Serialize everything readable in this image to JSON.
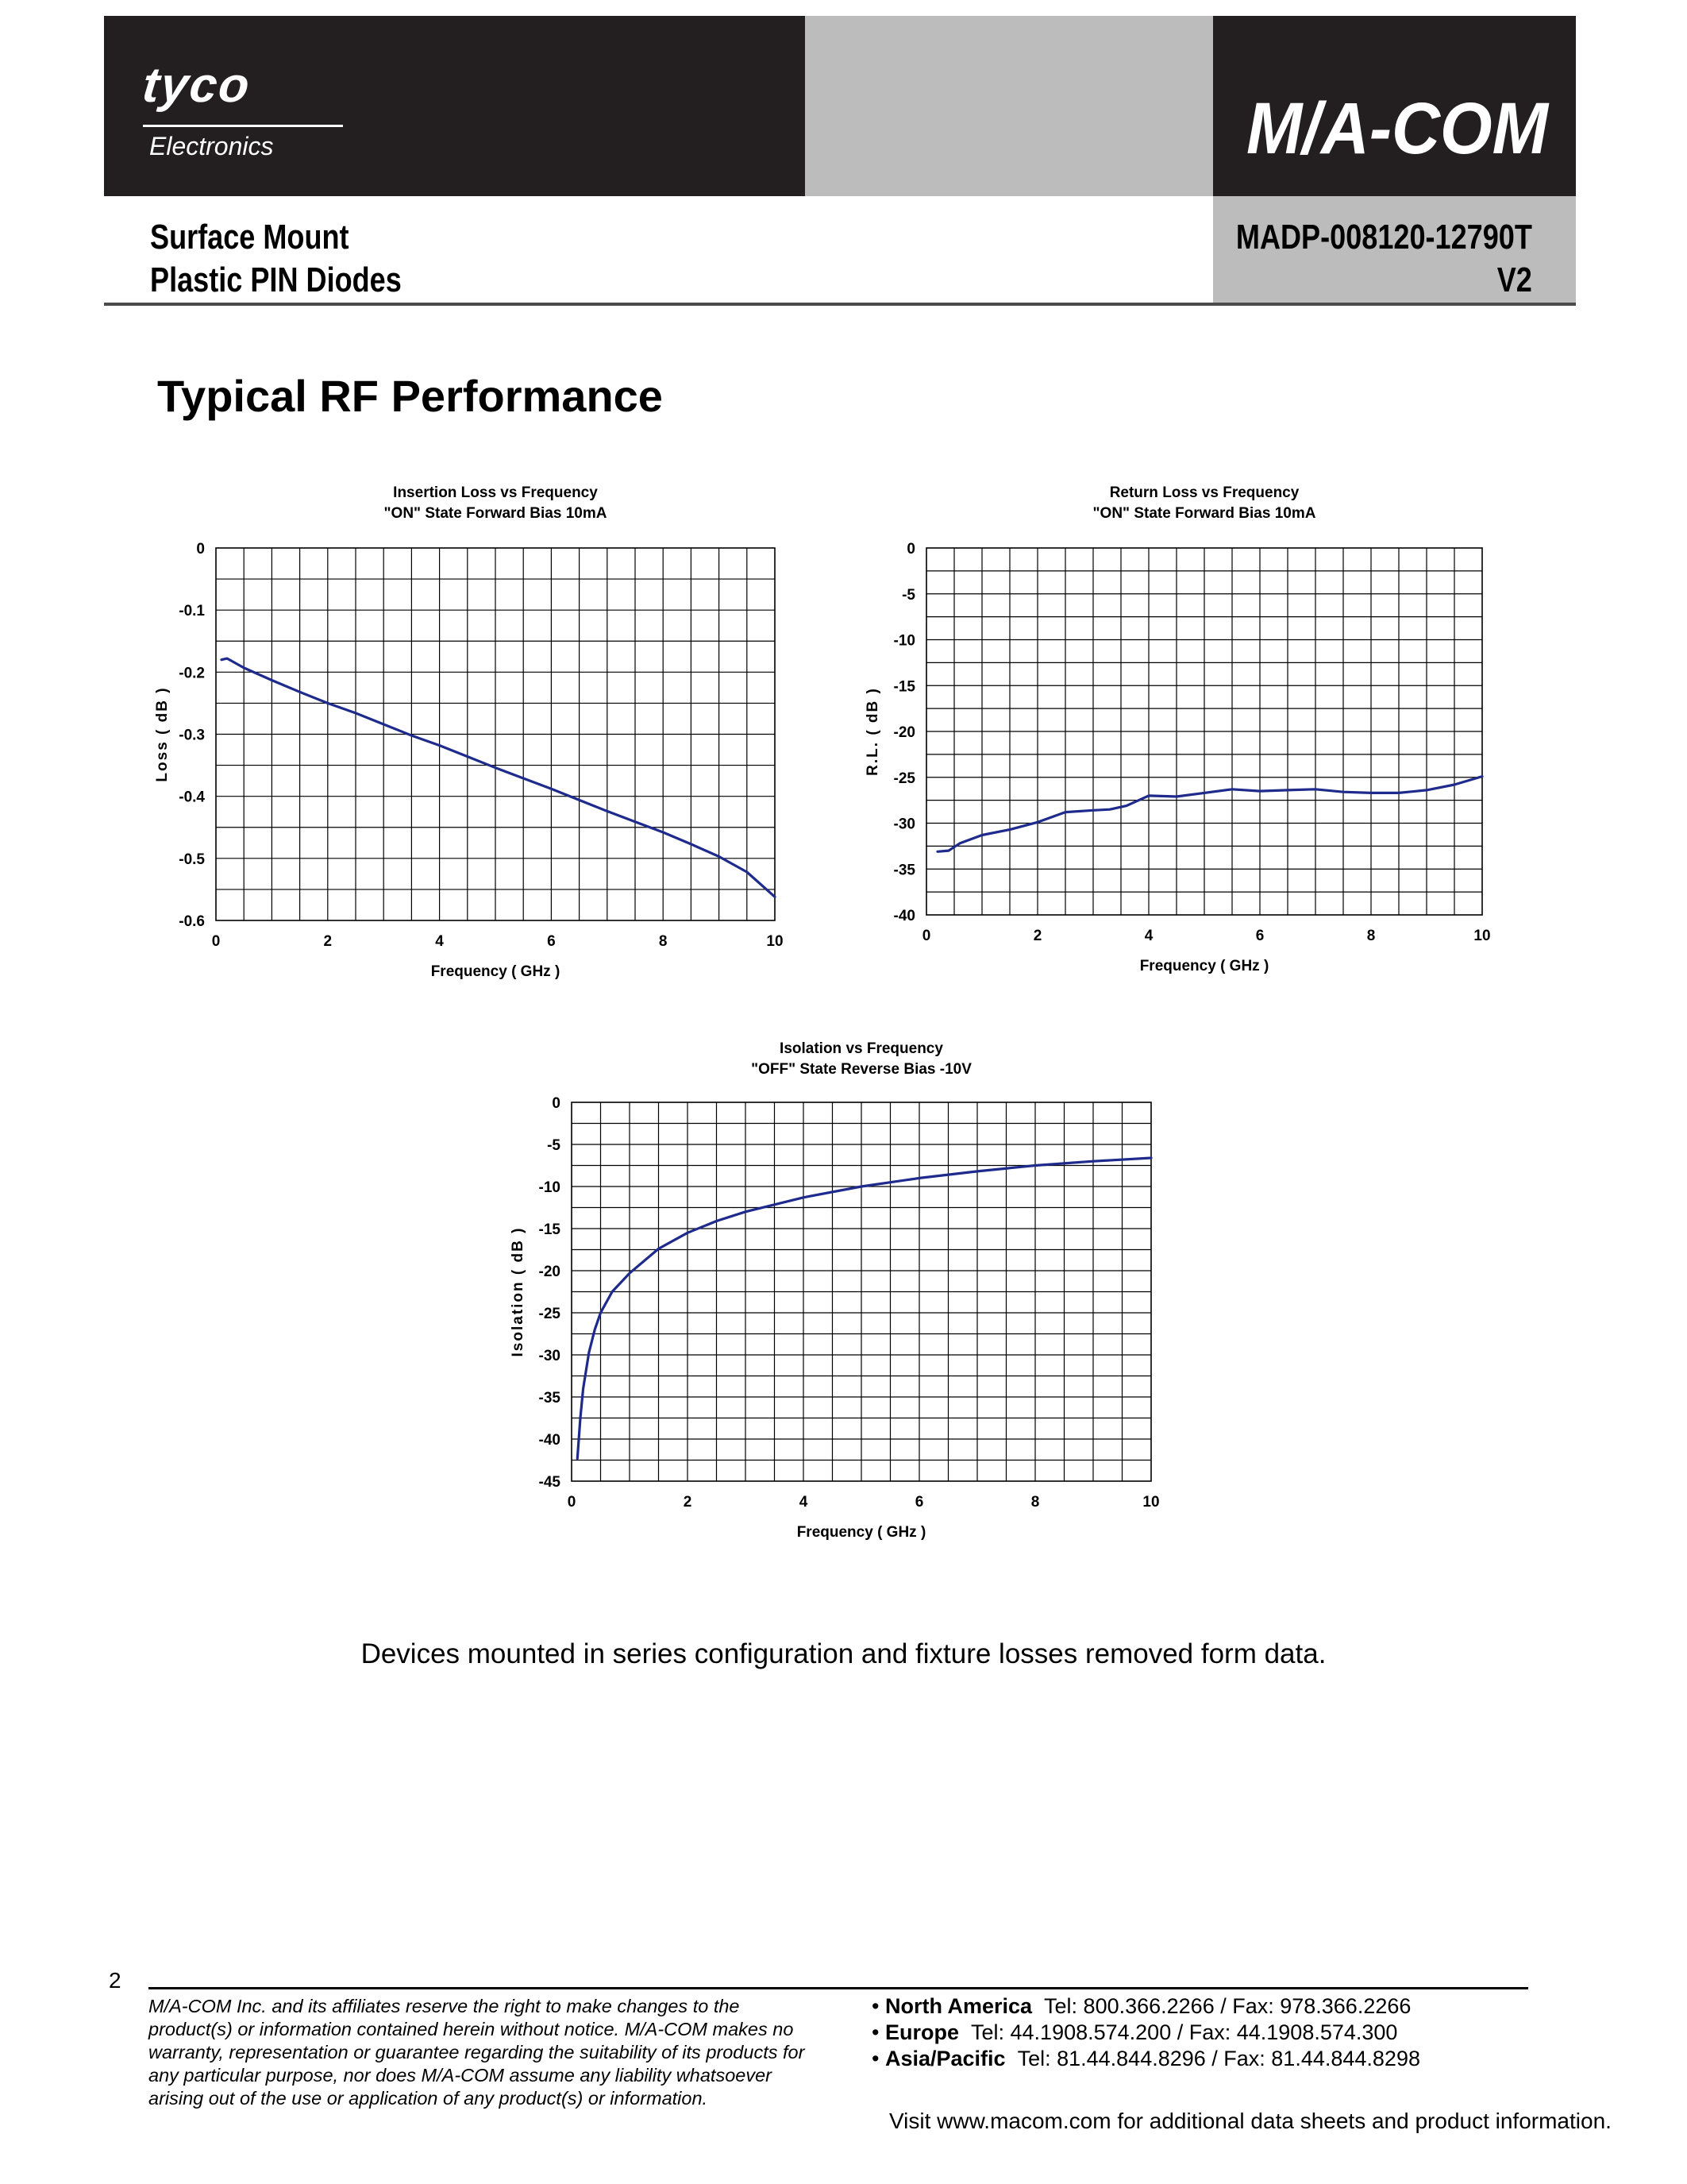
{
  "header": {
    "left_logo_text": "tyco",
    "left_logo_subtext": "Electronics",
    "right_logo_text": "M/A-COM",
    "product_line1": "Surface Mount",
    "product_line2": "Plastic PIN Diodes",
    "part_number": "MADP-008120-12790T",
    "version": "V2"
  },
  "section_title": "Typical RF Performance",
  "chart_data": [
    {
      "type": "line",
      "title": "Insertion Loss vs Frequency",
      "subtitle": "\"ON\" State Forward Bias 10mA",
      "xlabel": "Frequency ( GHz )",
      "ylabel": "Loss ( dB )",
      "xlim": [
        0,
        10
      ],
      "ylim": [
        -0.6,
        0
      ],
      "xticks": [
        0,
        2,
        4,
        6,
        8,
        10
      ],
      "yticks": [
        0,
        -0.1,
        -0.2,
        -0.3,
        -0.4,
        -0.5,
        -0.6
      ],
      "ytick_labels": [
        "0",
        "-0.1",
        "-0.2",
        "-0.3",
        "-0.4",
        "-0.5",
        "-0.6"
      ],
      "grid": true,
      "series": [
        {
          "color": "#1e2a8c",
          "x": [
            0.1,
            0.2,
            0.3,
            0.5,
            1,
            1.5,
            2,
            2.5,
            3,
            3.5,
            4,
            4.5,
            5,
            5.5,
            6,
            6.5,
            7,
            7.5,
            8,
            8.5,
            9,
            9.5,
            10
          ],
          "y": [
            -0.18,
            -0.178,
            -0.183,
            -0.193,
            -0.213,
            -0.232,
            -0.25,
            -0.266,
            -0.284,
            -0.302,
            -0.318,
            -0.336,
            -0.354,
            -0.371,
            -0.388,
            -0.406,
            -0.424,
            -0.441,
            -0.458,
            -0.477,
            -0.497,
            -0.522,
            -0.562
          ]
        }
      ]
    },
    {
      "type": "line",
      "title": "Return Loss vs Frequency",
      "subtitle": "\"ON\" State Forward Bias 10mA",
      "xlabel": "Frequency ( GHz )",
      "ylabel": "R.L. ( dB )",
      "xlim": [
        0,
        10
      ],
      "ylim": [
        -40,
        0
      ],
      "xticks": [
        0,
        2,
        4,
        6,
        8,
        10
      ],
      "yticks": [
        0,
        -5,
        -10,
        -15,
        -20,
        -25,
        -30,
        -35,
        -40
      ],
      "ytick_labels": [
        "0",
        "-5",
        "-10",
        "-15",
        "-20",
        "-25",
        "-30",
        "-35",
        "-40"
      ],
      "grid": true,
      "series": [
        {
          "color": "#1e2a8c",
          "x": [
            0.2,
            0.4,
            0.6,
            1,
            1.5,
            2,
            2.5,
            3,
            3.3,
            3.6,
            4,
            4.5,
            5,
            5.5,
            6,
            6.5,
            7,
            7.5,
            8,
            8.5,
            9,
            9.5,
            10
          ],
          "y": [
            -33.1,
            -33.0,
            -32.2,
            -31.3,
            -30.7,
            -29.9,
            -28.8,
            -28.6,
            -28.5,
            -28.1,
            -27.0,
            -27.1,
            -26.7,
            -26.3,
            -26.5,
            -26.4,
            -26.3,
            -26.6,
            -26.7,
            -26.7,
            -26.4,
            -25.8,
            -24.9
          ]
        }
      ]
    },
    {
      "type": "line",
      "title": "Isolation vs Frequency",
      "subtitle": "\"OFF\" State Reverse Bias -10V",
      "xlabel": "Frequency ( GHz )",
      "ylabel": "Isolation ( dB )",
      "xlim": [
        0,
        10
      ],
      "ylim": [
        -45,
        0
      ],
      "xticks": [
        0,
        2,
        4,
        6,
        8,
        10
      ],
      "yticks": [
        0,
        -5,
        -10,
        -15,
        -20,
        -25,
        -30,
        -35,
        -40,
        -45
      ],
      "ytick_labels": [
        "0",
        "-5",
        "-10",
        "-15",
        "-20",
        "-25",
        "-30",
        "-35",
        "-40",
        "-45"
      ],
      "grid": true,
      "series": [
        {
          "color": "#1e2a8c",
          "x": [
            0.1,
            0.15,
            0.2,
            0.3,
            0.4,
            0.5,
            0.7,
            1,
            1.5,
            2,
            2.5,
            3,
            4,
            5,
            6,
            7,
            8,
            9,
            10
          ],
          "y": [
            -42.3,
            -37.5,
            -34.0,
            -29.7,
            -27.0,
            -25.0,
            -22.5,
            -20.3,
            -17.4,
            -15.5,
            -14.1,
            -13.0,
            -11.3,
            -10.0,
            -9.0,
            -8.2,
            -7.5,
            -7.0,
            -6.6
          ]
        }
      ]
    }
  ],
  "note": "Devices mounted in series configuration and fixture losses removed form data.",
  "footer": {
    "page_number": "2",
    "disclaimer": "M/A-COM Inc. and its affiliates reserve the right to make changes to the product(s) or information contained herein without notice. M/A-COM makes no warranty, representation or guarantee regarding the suitability of its products for any particular purpose, nor does M/A-COM assume any liability whatsoever arising out of the use or application of any product(s) or information.",
    "contacts": [
      {
        "region": "North America",
        "details": "Tel: 800.366.2266 / Fax: 978.366.2266"
      },
      {
        "region": "Europe",
        "details": "Tel: 44.1908.574.200 / Fax: 44.1908.574.300"
      },
      {
        "region": "Asia/Pacific",
        "details": "Tel: 81.44.844.8296 / Fax: 81.44.844.8298"
      }
    ],
    "visit_text": "Visit www.macom.com for additional data sheets and product information."
  }
}
